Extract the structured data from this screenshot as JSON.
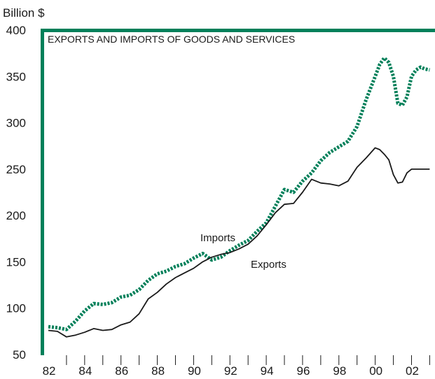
{
  "chart_data": {
    "type": "line",
    "title": "EXPORTS AND IMPORTS OF GOODS AND SERVICES",
    "ylabel": "Billion $",
    "xlabel": "",
    "ylim": [
      50,
      400
    ],
    "xlim": [
      1982,
      2003.1
    ],
    "y_ticks": [
      "50",
      "100",
      "150",
      "200",
      "250",
      "300",
      "350",
      "400"
    ],
    "x_tick_labels": [
      "82",
      "84",
      "86",
      "88",
      "90",
      "92",
      "94",
      "96",
      "98",
      "00",
      "02"
    ],
    "grid": false,
    "legend": "inline labels",
    "colors": {
      "frame": "#00805a",
      "imports": "#00805a",
      "exports": "#1a1a1a",
      "text": "#1a1a1a"
    },
    "series": [
      {
        "name": "Imports",
        "style": "dotted",
        "x": [
          1982.0,
          1982.5,
          1983.0,
          1983.5,
          1984.0,
          1984.5,
          1985.0,
          1985.5,
          1986.0,
          1986.5,
          1987.0,
          1987.5,
          1988.0,
          1988.5,
          1989.0,
          1989.5,
          1990.0,
          1990.5,
          1991.0,
          1991.5,
          1992.0,
          1992.5,
          1993.0,
          1993.5,
          1994.0,
          1994.5,
          1995.0,
          1995.5,
          1996.0,
          1996.5,
          1997.0,
          1997.5,
          1998.0,
          1998.5,
          1999.0,
          1999.5,
          2000.0,
          2000.25,
          2000.5,
          2000.75,
          2001.0,
          2001.25,
          2001.5,
          2001.75,
          2002.0,
          2002.25,
          2002.5,
          2002.75,
          2003.0
        ],
        "y": [
          80,
          79,
          77,
          86,
          97,
          105,
          104,
          106,
          112,
          114,
          120,
          130,
          137,
          140,
          145,
          148,
          154,
          159,
          152,
          155,
          162,
          168,
          173,
          183,
          192,
          210,
          228,
          225,
          237,
          246,
          259,
          268,
          274,
          280,
          296,
          325,
          350,
          363,
          370,
          365,
          350,
          321,
          319,
          328,
          350,
          357,
          360,
          358,
          357
        ]
      },
      {
        "name": "Exports",
        "style": "solid",
        "x": [
          1982.0,
          1982.5,
          1983.0,
          1983.5,
          1984.0,
          1984.5,
          1985.0,
          1985.5,
          1986.0,
          1986.5,
          1987.0,
          1987.5,
          1988.0,
          1988.5,
          1989.0,
          1989.5,
          1990.0,
          1990.5,
          1991.0,
          1991.5,
          1992.0,
          1992.5,
          1993.0,
          1993.5,
          1994.0,
          1994.5,
          1995.0,
          1995.5,
          1996.0,
          1996.5,
          1997.0,
          1997.5,
          1998.0,
          1998.5,
          1999.0,
          1999.5,
          2000.0,
          2000.25,
          2000.5,
          2000.75,
          2001.0,
          2001.25,
          2001.5,
          2001.75,
          2002.0,
          2002.25,
          2002.5,
          2002.75,
          2003.0
        ],
        "y": [
          76,
          75,
          69,
          71,
          74,
          78,
          76,
          77,
          82,
          85,
          94,
          110,
          117,
          126,
          133,
          138,
          143,
          150,
          155,
          158,
          160,
          164,
          169,
          178,
          190,
          203,
          212,
          213,
          225,
          239,
          235,
          234,
          232,
          237,
          252,
          262,
          273,
          271,
          266,
          260,
          244,
          235,
          236,
          246,
          250,
          250,
          250,
          250,
          250
        ]
      }
    ]
  }
}
